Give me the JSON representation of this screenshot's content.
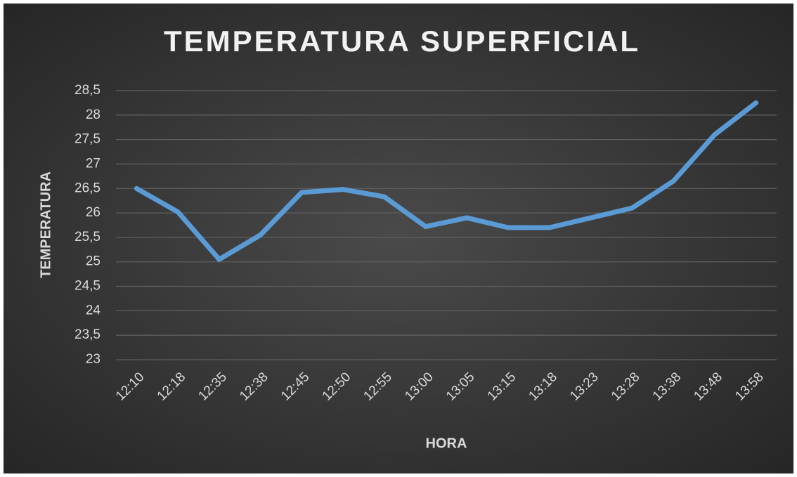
{
  "chart_data": {
    "type": "line",
    "title": "TEMPERATURA SUPERFICIAL",
    "x_label": "HORA",
    "y_label": "TEMPERATURA",
    "categories": [
      "12:10",
      "12:18",
      "12:35",
      "12:38",
      "12:45",
      "12:50",
      "12:55",
      "13:00",
      "13:05",
      "13:15",
      "13:18",
      "13:23",
      "13:28",
      "13:38",
      "13:48",
      "13:58"
    ],
    "series": [
      {
        "name": "Temperatura",
        "color": "#5b9bd5",
        "values": [
          26.5,
          26.02,
          25.05,
          25.55,
          26.42,
          26.48,
          26.33,
          25.72,
          25.9,
          25.7,
          25.7,
          25.9,
          26.1,
          26.65,
          27.6,
          28.25
        ]
      }
    ],
    "ylim": [
      23,
      28.5
    ],
    "yticks": [
      23,
      {
        "value": 23.5,
        "label": "23,5"
      },
      24,
      {
        "value": 24.5,
        "label": "24,5"
      },
      25,
      {
        "value": 25.5,
        "label": "25,5"
      },
      26,
      {
        "value": 26.5,
        "label": "26,5"
      },
      27,
      {
        "value": 27.5,
        "label": "27,5"
      },
      28,
      {
        "value": 28.5,
        "label": "28,5"
      }
    ],
    "grid": true
  }
}
